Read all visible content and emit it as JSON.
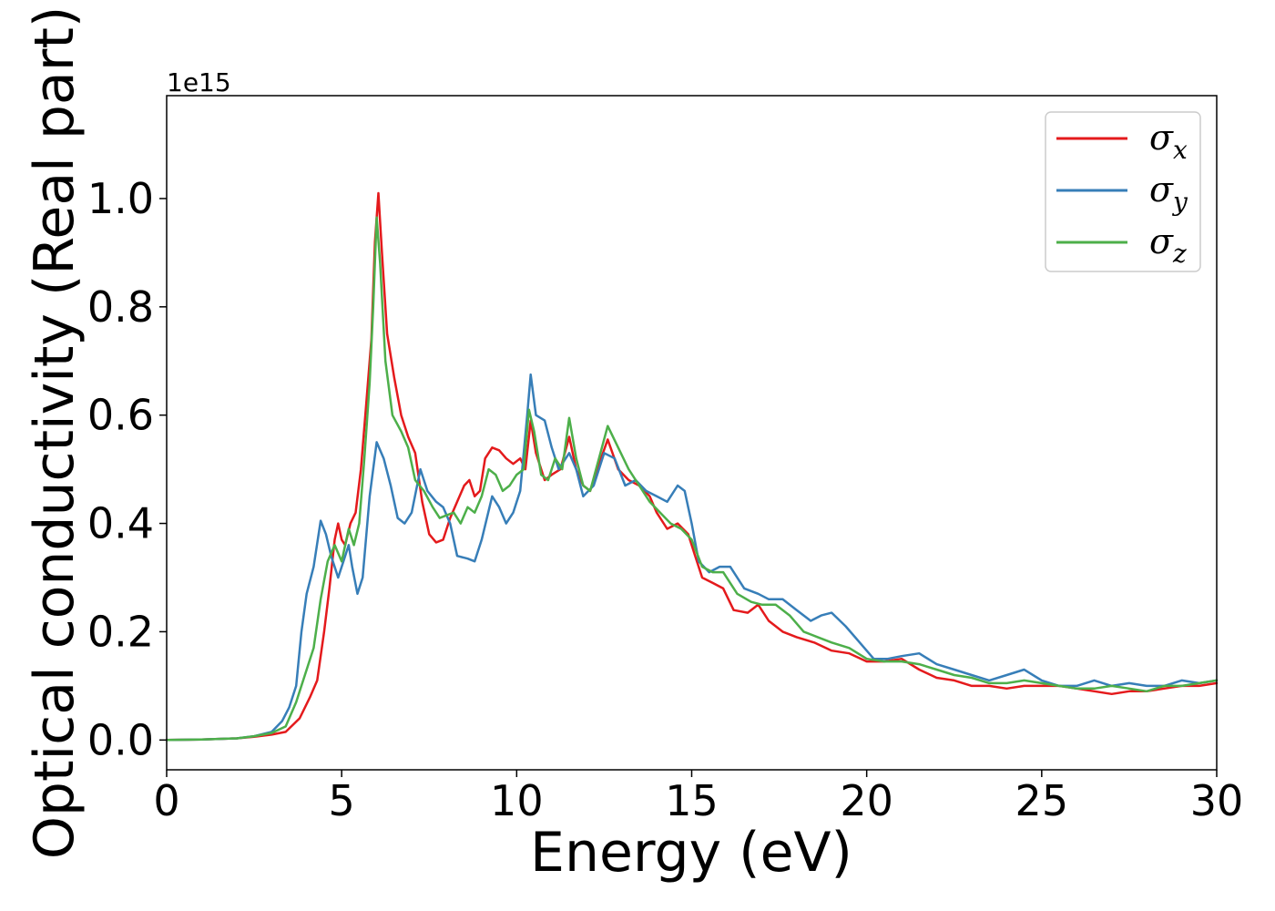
{
  "chart_data": {
    "type": "line",
    "xlabel": "Energy (eV)",
    "ylabel": "Optical conductivity (Real part)",
    "y_offset_text": "1e15",
    "xlim": [
      0,
      30
    ],
    "ylim": [
      -0.055,
      1.19
    ],
    "xticks": [
      0,
      5,
      10,
      15,
      20,
      25,
      30
    ],
    "yticks": [
      0.0,
      0.2,
      0.4,
      0.6,
      0.8,
      1.0
    ],
    "xtick_labels": [
      "0",
      "5",
      "10",
      "15",
      "20",
      "25",
      "30"
    ],
    "ytick_labels": [
      "0.0",
      "0.2",
      "0.4",
      "0.6",
      "0.8",
      "1.0"
    ],
    "grid": false,
    "legend_position": "upper right",
    "series": [
      {
        "name": "σx",
        "legend_base": "σ",
        "legend_sub": "x",
        "color": "#e41a1c",
        "points": [
          [
            0,
            0
          ],
          [
            1,
            0.001
          ],
          [
            2,
            0.003
          ],
          [
            2.5,
            0.006
          ],
          [
            3,
            0.01
          ],
          [
            3.4,
            0.015
          ],
          [
            3.8,
            0.04
          ],
          [
            4.1,
            0.08
          ],
          [
            4.3,
            0.11
          ],
          [
            4.5,
            0.2
          ],
          [
            4.65,
            0.28
          ],
          [
            4.8,
            0.37
          ],
          [
            4.9,
            0.4
          ],
          [
            5.0,
            0.37
          ],
          [
            5.1,
            0.36
          ],
          [
            5.25,
            0.4
          ],
          [
            5.4,
            0.42
          ],
          [
            5.55,
            0.5
          ],
          [
            5.7,
            0.62
          ],
          [
            5.85,
            0.74
          ],
          [
            5.95,
            0.92
          ],
          [
            6.05,
            1.01
          ],
          [
            6.15,
            0.9
          ],
          [
            6.3,
            0.75
          ],
          [
            6.5,
            0.67
          ],
          [
            6.7,
            0.6
          ],
          [
            6.9,
            0.56
          ],
          [
            7.1,
            0.53
          ],
          [
            7.3,
            0.44
          ],
          [
            7.5,
            0.38
          ],
          [
            7.7,
            0.365
          ],
          [
            7.9,
            0.37
          ],
          [
            8.1,
            0.41
          ],
          [
            8.3,
            0.44
          ],
          [
            8.5,
            0.47
          ],
          [
            8.65,
            0.48
          ],
          [
            8.8,
            0.45
          ],
          [
            8.95,
            0.46
          ],
          [
            9.1,
            0.52
          ],
          [
            9.3,
            0.54
          ],
          [
            9.5,
            0.535
          ],
          [
            9.7,
            0.52
          ],
          [
            9.9,
            0.51
          ],
          [
            10.1,
            0.52
          ],
          [
            10.25,
            0.5
          ],
          [
            10.4,
            0.59
          ],
          [
            10.55,
            0.53
          ],
          [
            10.8,
            0.48
          ],
          [
            11.0,
            0.49
          ],
          [
            11.25,
            0.5
          ],
          [
            11.5,
            0.56
          ],
          [
            11.7,
            0.5
          ],
          [
            11.9,
            0.47
          ],
          [
            12.1,
            0.46
          ],
          [
            12.3,
            0.5
          ],
          [
            12.6,
            0.555
          ],
          [
            12.9,
            0.5
          ],
          [
            13.2,
            0.48
          ],
          [
            13.5,
            0.47
          ],
          [
            13.8,
            0.45
          ],
          [
            14.0,
            0.42
          ],
          [
            14.3,
            0.39
          ],
          [
            14.6,
            0.4
          ],
          [
            14.9,
            0.38
          ],
          [
            15.1,
            0.34
          ],
          [
            15.3,
            0.3
          ],
          [
            15.6,
            0.29
          ],
          [
            15.9,
            0.28
          ],
          [
            16.2,
            0.24
          ],
          [
            16.6,
            0.235
          ],
          [
            16.9,
            0.25
          ],
          [
            17.2,
            0.22
          ],
          [
            17.6,
            0.2
          ],
          [
            18.0,
            0.19
          ],
          [
            18.5,
            0.18
          ],
          [
            19.0,
            0.165
          ],
          [
            19.5,
            0.16
          ],
          [
            20.0,
            0.145
          ],
          [
            20.5,
            0.145
          ],
          [
            21.0,
            0.15
          ],
          [
            21.5,
            0.13
          ],
          [
            22.0,
            0.115
          ],
          [
            22.5,
            0.11
          ],
          [
            23.0,
            0.1
          ],
          [
            23.5,
            0.1
          ],
          [
            24.0,
            0.095
          ],
          [
            24.5,
            0.1
          ],
          [
            25.0,
            0.1
          ],
          [
            25.5,
            0.1
          ],
          [
            26.0,
            0.095
          ],
          [
            26.5,
            0.09
          ],
          [
            27.0,
            0.085
          ],
          [
            27.5,
            0.09
          ],
          [
            28.0,
            0.09
          ],
          [
            28.5,
            0.095
          ],
          [
            29.0,
            0.1
          ],
          [
            29.5,
            0.1
          ],
          [
            30.0,
            0.105
          ]
        ]
      },
      {
        "name": "σy",
        "legend_base": "σ",
        "legend_sub": "y",
        "color": "#377eb8",
        "points": [
          [
            0,
            0
          ],
          [
            1,
            0.001
          ],
          [
            2,
            0.003
          ],
          [
            2.5,
            0.007
          ],
          [
            3,
            0.015
          ],
          [
            3.3,
            0.035
          ],
          [
            3.5,
            0.06
          ],
          [
            3.7,
            0.1
          ],
          [
            3.85,
            0.2
          ],
          [
            4.0,
            0.27
          ],
          [
            4.2,
            0.32
          ],
          [
            4.4,
            0.405
          ],
          [
            4.55,
            0.38
          ],
          [
            4.7,
            0.34
          ],
          [
            4.9,
            0.3
          ],
          [
            5.05,
            0.33
          ],
          [
            5.2,
            0.36
          ],
          [
            5.3,
            0.32
          ],
          [
            5.45,
            0.27
          ],
          [
            5.6,
            0.3
          ],
          [
            5.8,
            0.45
          ],
          [
            6.0,
            0.55
          ],
          [
            6.2,
            0.52
          ],
          [
            6.4,
            0.47
          ],
          [
            6.6,
            0.41
          ],
          [
            6.8,
            0.4
          ],
          [
            7.0,
            0.42
          ],
          [
            7.25,
            0.5
          ],
          [
            7.45,
            0.46
          ],
          [
            7.7,
            0.44
          ],
          [
            7.9,
            0.43
          ],
          [
            8.1,
            0.4
          ],
          [
            8.3,
            0.34
          ],
          [
            8.6,
            0.335
          ],
          [
            8.8,
            0.33
          ],
          [
            9.0,
            0.37
          ],
          [
            9.3,
            0.45
          ],
          [
            9.5,
            0.43
          ],
          [
            9.7,
            0.4
          ],
          [
            9.9,
            0.42
          ],
          [
            10.1,
            0.46
          ],
          [
            10.3,
            0.6
          ],
          [
            10.4,
            0.675
          ],
          [
            10.55,
            0.6
          ],
          [
            10.8,
            0.59
          ],
          [
            11.0,
            0.54
          ],
          [
            11.2,
            0.5
          ],
          [
            11.5,
            0.53
          ],
          [
            11.7,
            0.5
          ],
          [
            11.9,
            0.45
          ],
          [
            12.2,
            0.47
          ],
          [
            12.5,
            0.53
          ],
          [
            12.8,
            0.52
          ],
          [
            13.1,
            0.47
          ],
          [
            13.4,
            0.48
          ],
          [
            13.7,
            0.46
          ],
          [
            14.0,
            0.45
          ],
          [
            14.3,
            0.44
          ],
          [
            14.6,
            0.47
          ],
          [
            14.8,
            0.46
          ],
          [
            15.0,
            0.4
          ],
          [
            15.2,
            0.33
          ],
          [
            15.5,
            0.31
          ],
          [
            15.8,
            0.32
          ],
          [
            16.1,
            0.32
          ],
          [
            16.5,
            0.28
          ],
          [
            16.9,
            0.27
          ],
          [
            17.2,
            0.26
          ],
          [
            17.6,
            0.26
          ],
          [
            18.0,
            0.24
          ],
          [
            18.4,
            0.22
          ],
          [
            18.7,
            0.23
          ],
          [
            19.0,
            0.235
          ],
          [
            19.4,
            0.21
          ],
          [
            19.8,
            0.18
          ],
          [
            20.2,
            0.15
          ],
          [
            20.6,
            0.15
          ],
          [
            21.0,
            0.155
          ],
          [
            21.5,
            0.16
          ],
          [
            22.0,
            0.14
          ],
          [
            22.5,
            0.13
          ],
          [
            23.0,
            0.12
          ],
          [
            23.5,
            0.11
          ],
          [
            24.0,
            0.12
          ],
          [
            24.5,
            0.13
          ],
          [
            25.0,
            0.11
          ],
          [
            25.5,
            0.1
          ],
          [
            26.0,
            0.1
          ],
          [
            26.5,
            0.11
          ],
          [
            27.0,
            0.1
          ],
          [
            27.5,
            0.105
          ],
          [
            28.0,
            0.1
          ],
          [
            28.5,
            0.1
          ],
          [
            29.0,
            0.11
          ],
          [
            29.5,
            0.105
          ],
          [
            30.0,
            0.11
          ]
        ]
      },
      {
        "name": "σz",
        "legend_base": "σ",
        "legend_sub": "z",
        "color": "#4daf4a",
        "points": [
          [
            0,
            0
          ],
          [
            1,
            0.001
          ],
          [
            2,
            0.003
          ],
          [
            2.5,
            0.007
          ],
          [
            3,
            0.013
          ],
          [
            3.4,
            0.025
          ],
          [
            3.7,
            0.07
          ],
          [
            3.95,
            0.12
          ],
          [
            4.2,
            0.17
          ],
          [
            4.4,
            0.26
          ],
          [
            4.6,
            0.33
          ],
          [
            4.8,
            0.36
          ],
          [
            5.0,
            0.33
          ],
          [
            5.2,
            0.39
          ],
          [
            5.35,
            0.36
          ],
          [
            5.5,
            0.4
          ],
          [
            5.65,
            0.52
          ],
          [
            5.8,
            0.66
          ],
          [
            5.9,
            0.8
          ],
          [
            6.0,
            0.965
          ],
          [
            6.1,
            0.88
          ],
          [
            6.25,
            0.7
          ],
          [
            6.45,
            0.6
          ],
          [
            6.7,
            0.57
          ],
          [
            6.9,
            0.54
          ],
          [
            7.1,
            0.48
          ],
          [
            7.35,
            0.46
          ],
          [
            7.6,
            0.43
          ],
          [
            7.8,
            0.41
          ],
          [
            8.0,
            0.415
          ],
          [
            8.2,
            0.42
          ],
          [
            8.4,
            0.4
          ],
          [
            8.6,
            0.43
          ],
          [
            8.8,
            0.42
          ],
          [
            9.0,
            0.45
          ],
          [
            9.2,
            0.5
          ],
          [
            9.4,
            0.49
          ],
          [
            9.6,
            0.46
          ],
          [
            9.8,
            0.47
          ],
          [
            10.0,
            0.49
          ],
          [
            10.2,
            0.5
          ],
          [
            10.35,
            0.61
          ],
          [
            10.5,
            0.57
          ],
          [
            10.7,
            0.49
          ],
          [
            10.9,
            0.48
          ],
          [
            11.1,
            0.52
          ],
          [
            11.3,
            0.5
          ],
          [
            11.5,
            0.595
          ],
          [
            11.7,
            0.52
          ],
          [
            11.9,
            0.47
          ],
          [
            12.1,
            0.46
          ],
          [
            12.35,
            0.52
          ],
          [
            12.6,
            0.58
          ],
          [
            12.9,
            0.54
          ],
          [
            13.2,
            0.5
          ],
          [
            13.5,
            0.47
          ],
          [
            13.8,
            0.44
          ],
          [
            14.1,
            0.42
          ],
          [
            14.4,
            0.4
          ],
          [
            14.7,
            0.39
          ],
          [
            15.0,
            0.37
          ],
          [
            15.3,
            0.32
          ],
          [
            15.6,
            0.31
          ],
          [
            15.9,
            0.31
          ],
          [
            16.3,
            0.27
          ],
          [
            16.7,
            0.255
          ],
          [
            17.0,
            0.25
          ],
          [
            17.4,
            0.25
          ],
          [
            17.8,
            0.23
          ],
          [
            18.2,
            0.2
          ],
          [
            18.6,
            0.19
          ],
          [
            19.0,
            0.18
          ],
          [
            19.5,
            0.17
          ],
          [
            20.0,
            0.15
          ],
          [
            20.5,
            0.145
          ],
          [
            21.0,
            0.145
          ],
          [
            21.5,
            0.14
          ],
          [
            22.0,
            0.13
          ],
          [
            22.5,
            0.12
          ],
          [
            23.0,
            0.115
          ],
          [
            23.5,
            0.105
          ],
          [
            24.0,
            0.105
          ],
          [
            24.5,
            0.11
          ],
          [
            25.0,
            0.105
          ],
          [
            25.5,
            0.1
          ],
          [
            26.0,
            0.095
          ],
          [
            26.5,
            0.095
          ],
          [
            27.0,
            0.1
          ],
          [
            27.5,
            0.095
          ],
          [
            28.0,
            0.09
          ],
          [
            28.5,
            0.1
          ],
          [
            29.0,
            0.1
          ],
          [
            29.5,
            0.105
          ],
          [
            30.0,
            0.11
          ]
        ]
      }
    ]
  }
}
